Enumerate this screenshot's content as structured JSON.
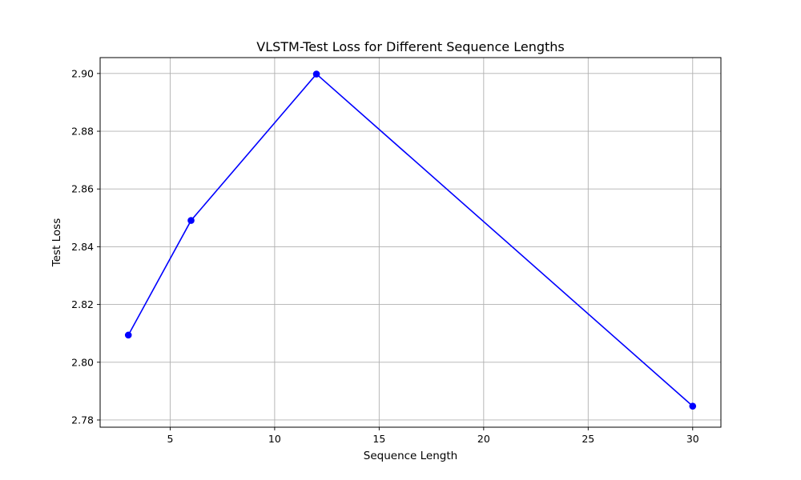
{
  "chart_data": {
    "type": "line",
    "title": "VLSTM-Test Loss for Different Sequence Lengths",
    "xlabel": "Sequence Length",
    "ylabel": "Test Loss",
    "xlim": [
      1.65,
      31.35
    ],
    "ylim": [
      2.7775,
      2.9055
    ],
    "xticks": [
      5,
      10,
      15,
      20,
      25,
      30
    ],
    "xtick_labels": [
      "5",
      "10",
      "15",
      "20",
      "25",
      "30"
    ],
    "yticks": [
      2.78,
      2.8,
      2.82,
      2.84,
      2.86,
      2.88,
      2.9
    ],
    "ytick_labels": [
      "2.78",
      "2.80",
      "2.82",
      "2.84",
      "2.86",
      "2.88",
      "2.90"
    ],
    "grid": true,
    "series": [
      {
        "color": "#0000ff",
        "marker": "circle",
        "x": [
          3,
          6,
          12,
          30
        ],
        "y": [
          2.8094,
          2.8491,
          2.8998,
          2.7848
        ]
      }
    ]
  }
}
